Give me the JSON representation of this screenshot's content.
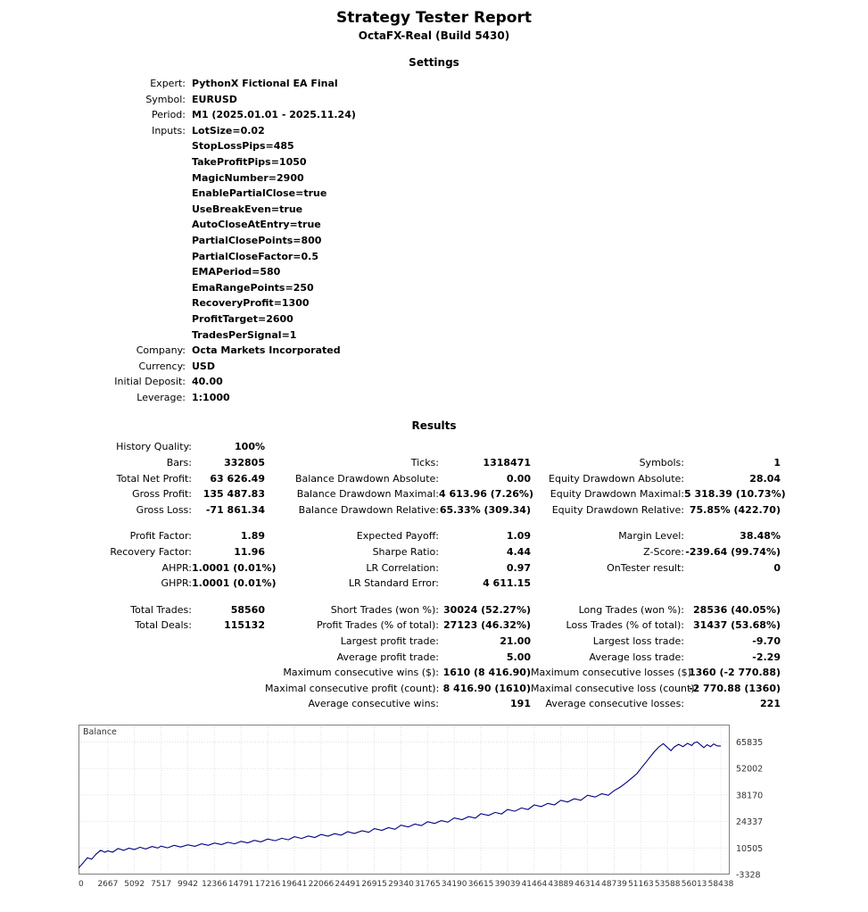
{
  "report": {
    "title": "Strategy Tester Report",
    "subtitle": "OctaFX-Real (Build 5430)"
  },
  "settings": {
    "heading": "Settings",
    "rows": [
      [
        "Expert:",
        "PythonX Fictional EA Final"
      ],
      [
        "Symbol:",
        "EURUSD"
      ],
      [
        "Period:",
        "M1 (2025.01.01 - 2025.11.24)"
      ],
      [
        "Inputs:",
        "LotSize=0.02"
      ],
      [
        "",
        "StopLossPips=485"
      ],
      [
        "",
        "TakeProfitPips=1050"
      ],
      [
        "",
        "MagicNumber=2900"
      ],
      [
        "",
        "EnablePartialClose=true"
      ],
      [
        "",
        "UseBreakEven=true"
      ],
      [
        "",
        "AutoCloseAtEntry=true"
      ],
      [
        "",
        "PartialClosePoints=800"
      ],
      [
        "",
        "PartialCloseFactor=0.5"
      ],
      [
        "",
        "EMAPeriod=580"
      ],
      [
        "",
        "EmaRangePoints=250"
      ],
      [
        "",
        "RecoveryProfit=1300"
      ],
      [
        "",
        "ProfitTarget=2600"
      ],
      [
        "",
        "TradesPerSignal=1"
      ],
      [
        "Company:",
        "Octa Markets Incorporated"
      ],
      [
        "Currency:",
        "USD"
      ],
      [
        "Initial Deposit:",
        "40.00"
      ],
      [
        "Leverage:",
        "1:1000"
      ]
    ]
  },
  "results": {
    "heading": "Results",
    "rows": [
      [
        "History Quality:",
        "100%",
        "",
        "",
        "",
        ""
      ],
      [
        "Bars:",
        "332805",
        "Ticks:",
        "1318471",
        "Symbols:",
        "1"
      ],
      [
        "Total Net Profit:",
        "63 626.49",
        "Balance Drawdown Absolute:",
        "0.00",
        "Equity Drawdown Absolute:",
        "28.04"
      ],
      [
        "Gross Profit:",
        "135 487.83",
        "Balance Drawdown Maximal:",
        "4 613.96 (7.26%)",
        "Equity Drawdown Maximal:",
        "5 318.39 (10.73%)"
      ],
      [
        "Gross Loss:",
        "-71 861.34",
        "Balance Drawdown Relative:",
        "65.33% (309.34)",
        "Equity Drawdown Relative:",
        "75.85% (422.70)"
      ],
      [],
      [
        "Profit Factor:",
        "1.89",
        "Expected Payoff:",
        "1.09",
        "Margin Level:",
        "38.48%"
      ],
      [
        "Recovery Factor:",
        "11.96",
        "Sharpe Ratio:",
        "4.44",
        "Z-Score:",
        "-239.64 (99.74%)"
      ],
      [
        "AHPR:",
        "1.0001 (0.01%)",
        "LR Correlation:",
        "0.97",
        "OnTester result:",
        "0"
      ],
      [
        "GHPR:",
        "1.0001 (0.01%)",
        "LR Standard Error:",
        "4 611.15",
        "",
        ""
      ],
      [],
      [
        "Total Trades:",
        "58560",
        "Short Trades (won %):",
        "30024 (52.27%)",
        "Long Trades (won %):",
        "28536 (40.05%)"
      ],
      [
        "Total Deals:",
        "115132",
        "Profit Trades (% of total):",
        "27123 (46.32%)",
        "Loss Trades (% of total):",
        "31437 (53.68%)"
      ],
      [
        "",
        "",
        "Largest profit trade:",
        "21.00",
        "Largest loss trade:",
        "-9.70"
      ],
      [
        "",
        "",
        "Average profit trade:",
        "5.00",
        "Average loss trade:",
        "-2.29"
      ],
      [
        "",
        "",
        "Maximum consecutive wins ($):",
        "1610 (8 416.90)",
        "Maximum consecutive losses ($):",
        "1360 (-2 770.88)"
      ],
      [
        "",
        "",
        "Maximal consecutive profit (count):",
        "8 416.90 (1610)",
        "Maximal consecutive loss (count):",
        "-2 770.88 (1360)"
      ],
      [
        "",
        "",
        "Average consecutive wins:",
        "191",
        "Average consecutive losses:",
        "221"
      ]
    ]
  },
  "chart_data": {
    "type": "line",
    "title": "Balance",
    "series_label": "Balance",
    "line_color": "#000080",
    "grid": true,
    "xlim": [
      0,
      59250
    ],
    "ylim": [
      -3328,
      74900
    ],
    "x_ticks": [
      0,
      2667,
      5092,
      7517,
      9942,
      12366,
      14791,
      17216,
      19641,
      22066,
      24491,
      26915,
      29340,
      31765,
      34190,
      36615,
      39039,
      41464,
      43889,
      46314,
      48739,
      51163,
      53588,
      56013,
      58438
    ],
    "y_ticks": [
      65835,
      52002,
      38170,
      24337,
      10505,
      -3328
    ],
    "points": [
      [
        0,
        40
      ],
      [
        400,
        2600
      ],
      [
        800,
        5400
      ],
      [
        1200,
        4700
      ],
      [
        1600,
        7300
      ],
      [
        2000,
        9300
      ],
      [
        2400,
        8300
      ],
      [
        2667,
        9000
      ],
      [
        3100,
        8300
      ],
      [
        3600,
        10200
      ],
      [
        4100,
        9300
      ],
      [
        4600,
        10400
      ],
      [
        5092,
        9700
      ],
      [
        5600,
        10900
      ],
      [
        6100,
        10000
      ],
      [
        6700,
        11300
      ],
      [
        7200,
        10500
      ],
      [
        7517,
        11500
      ],
      [
        8100,
        10600
      ],
      [
        8700,
        11900
      ],
      [
        9300,
        11000
      ],
      [
        9942,
        12200
      ],
      [
        10600,
        11400
      ],
      [
        11200,
        12700
      ],
      [
        11800,
        11900
      ],
      [
        12366,
        13100
      ],
      [
        13000,
        12300
      ],
      [
        13600,
        13500
      ],
      [
        14200,
        12700
      ],
      [
        14791,
        14000
      ],
      [
        15400,
        13200
      ],
      [
        16000,
        14500
      ],
      [
        16600,
        13700
      ],
      [
        17216,
        15200
      ],
      [
        17900,
        14300
      ],
      [
        18500,
        15600
      ],
      [
        19100,
        14800
      ],
      [
        19641,
        16400
      ],
      [
        20300,
        15500
      ],
      [
        20900,
        16800
      ],
      [
        21500,
        16000
      ],
      [
        22066,
        17600
      ],
      [
        22700,
        16700
      ],
      [
        23300,
        18000
      ],
      [
        23900,
        17200
      ],
      [
        24491,
        19000
      ],
      [
        25100,
        18100
      ],
      [
        25800,
        19500
      ],
      [
        26400,
        18700
      ],
      [
        26915,
        20600
      ],
      [
        27600,
        19700
      ],
      [
        28200,
        21100
      ],
      [
        28800,
        20300
      ],
      [
        29340,
        22400
      ],
      [
        30000,
        21500
      ],
      [
        30600,
        23000
      ],
      [
        31200,
        22200
      ],
      [
        31765,
        24200
      ],
      [
        32400,
        23300
      ],
      [
        33000,
        24800
      ],
      [
        33600,
        24000
      ],
      [
        34190,
        26200
      ],
      [
        34900,
        25300
      ],
      [
        35500,
        26900
      ],
      [
        36100,
        26100
      ],
      [
        36615,
        28400
      ],
      [
        37300,
        27500
      ],
      [
        37900,
        29100
      ],
      [
        38500,
        28300
      ],
      [
        39039,
        30600
      ],
      [
        39700,
        29700
      ],
      [
        40300,
        31400
      ],
      [
        40900,
        30600
      ],
      [
        41464,
        33000
      ],
      [
        42100,
        32100
      ],
      [
        42700,
        33800
      ],
      [
        43300,
        33000
      ],
      [
        43889,
        35400
      ],
      [
        44500,
        34500
      ],
      [
        45100,
        36200
      ],
      [
        45700,
        35400
      ],
      [
        46314,
        38000
      ],
      [
        47000,
        37100
      ],
      [
        47600,
        38800
      ],
      [
        48200,
        38000
      ],
      [
        48739,
        40500
      ],
      [
        49300,
        42300
      ],
      [
        49800,
        44500
      ],
      [
        50300,
        46800
      ],
      [
        50800,
        49300
      ],
      [
        51163,
        52000
      ],
      [
        51600,
        55000
      ],
      [
        52000,
        58000
      ],
      [
        52400,
        60800
      ],
      [
        52800,
        63200
      ],
      [
        53200,
        65000
      ],
      [
        53588,
        63000
      ],
      [
        53900,
        61300
      ],
      [
        54200,
        63200
      ],
      [
        54600,
        64600
      ],
      [
        55000,
        63400
      ],
      [
        55400,
        65100
      ],
      [
        55800,
        64000
      ],
      [
        56013,
        65400
      ],
      [
        56300,
        65835
      ],
      [
        56600,
        64300
      ],
      [
        56900,
        62900
      ],
      [
        57200,
        64400
      ],
      [
        57500,
        63400
      ],
      [
        57800,
        64800
      ],
      [
        58100,
        63800
      ],
      [
        58438,
        63666
      ]
    ]
  }
}
